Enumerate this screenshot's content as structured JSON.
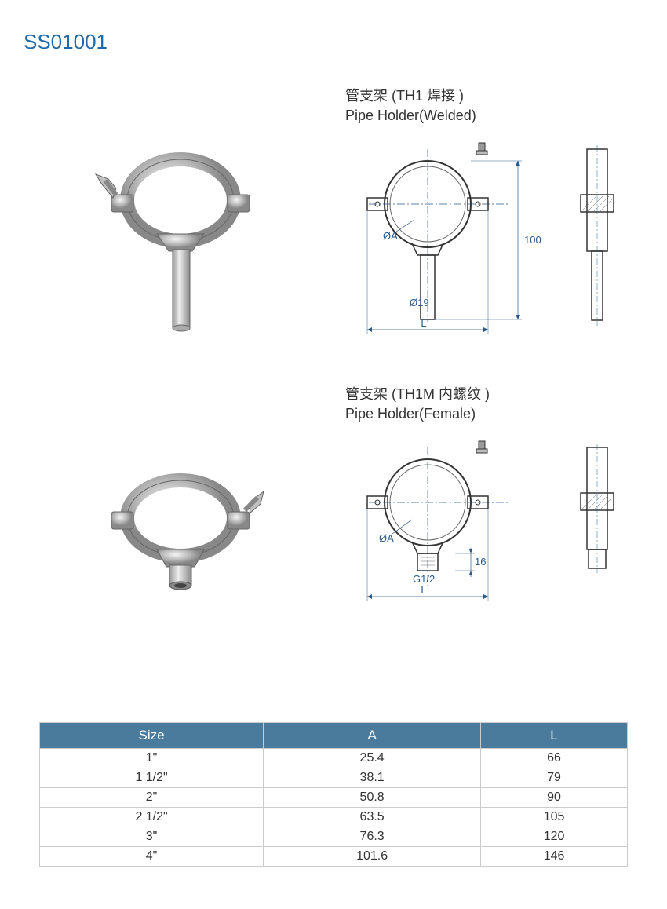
{
  "product_code": "SS01001",
  "section1": {
    "title_cn": "管支架 (TH1 焊接 )",
    "title_en": "Pipe Holder(Welded)",
    "dim_diameter": "ØA",
    "dim_height": "100",
    "dim_stem": "Ø19",
    "dim_length": "L"
  },
  "section2": {
    "title_cn": "管支架 (TH1M 内螺纹 )",
    "title_en": "Pipe Holder(Female)",
    "dim_diameter": "ØA",
    "dim_thread": "G1/2",
    "dim_small": "16",
    "dim_length": "L"
  },
  "table": {
    "columns": [
      "Size",
      "A",
      "L"
    ],
    "rows": [
      [
        "1\"",
        "25.4",
        "66"
      ],
      [
        "1 1/2\"",
        "38.1",
        "79"
      ],
      [
        "2\"",
        "50.8",
        "90"
      ],
      [
        "2 1/2\"",
        "63.5",
        "105"
      ],
      [
        "3\"",
        "76.3",
        "120"
      ],
      [
        "4\"",
        "101.6",
        "146"
      ]
    ],
    "header_bg": "#4a7a9c",
    "header_color": "#ffffff",
    "border_color": "#cccccc"
  }
}
